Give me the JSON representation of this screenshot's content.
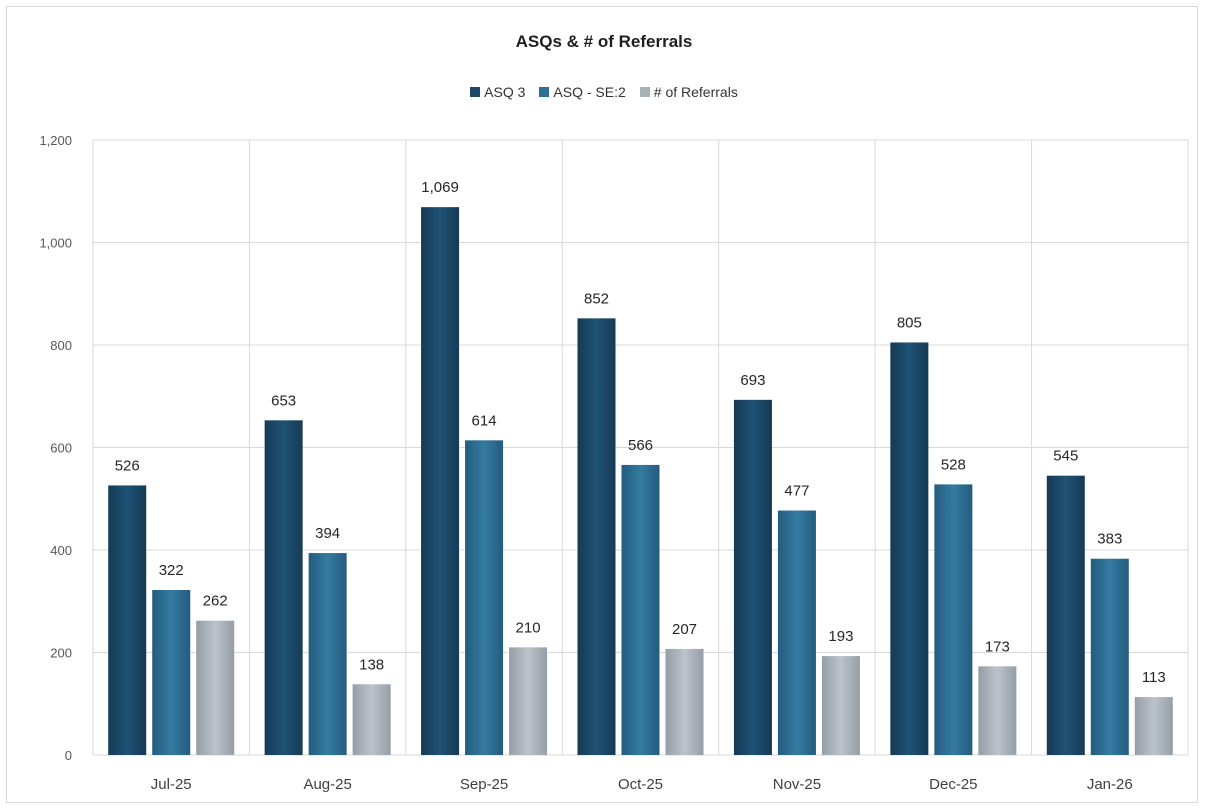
{
  "chart_data": {
    "type": "bar",
    "title": "ASQs & # of Referrals",
    "xlabel": "",
    "ylabel": "",
    "ylim": [
      0,
      1200
    ],
    "ytick_step": 200,
    "ytick_labels": [
      "0",
      "200",
      "400",
      "600",
      "800",
      "1,000",
      "1,200"
    ],
    "grid": true,
    "legend_position": "top",
    "categories": [
      "Jul-25",
      "Aug-25",
      "Sep-25",
      "Oct-25",
      "Nov-25",
      "Dec-25",
      "Jan-26"
    ],
    "series": [
      {
        "name": "ASQ 3",
        "color": "#1d4a6b",
        "values": [
          526,
          653,
          1069,
          852,
          693,
          805,
          545
        ],
        "labels": [
          "526",
          "653",
          "1,069",
          "852",
          "693",
          "805",
          "545"
        ]
      },
      {
        "name": "ASQ - SE:2",
        "color": "#2e6f93",
        "values": [
          322,
          394,
          614,
          566,
          477,
          528,
          383
        ],
        "labels": [
          "322",
          "394",
          "614",
          "566",
          "477",
          "528",
          "383"
        ]
      },
      {
        "name": "# of Referrals",
        "color": "#a8b0b8",
        "values": [
          262,
          138,
          210,
          207,
          193,
          173,
          113
        ],
        "labels": [
          "262",
          "138",
          "210",
          "207",
          "193",
          "173",
          "113"
        ]
      }
    ]
  }
}
